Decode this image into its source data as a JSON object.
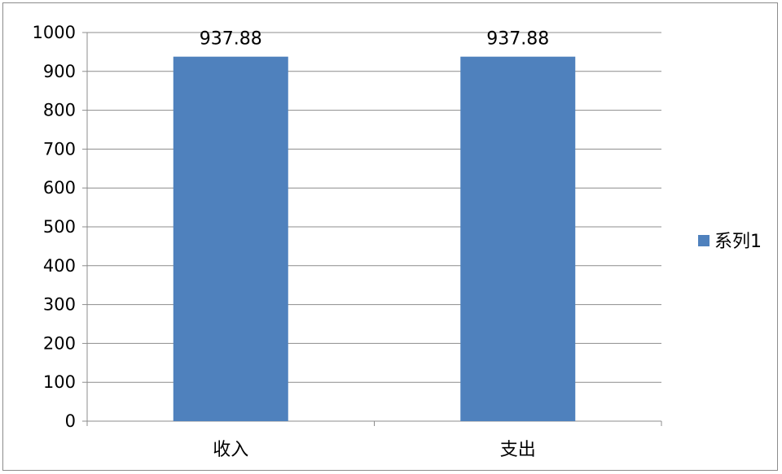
{
  "chart_data": {
    "type": "bar",
    "categories": [
      "收入",
      "支出"
    ],
    "series": [
      {
        "name": "系列1",
        "values": [
          937.88,
          937.88
        ],
        "color": "#4f81bd"
      }
    ],
    "data_labels": [
      "937.88",
      "937.88"
    ],
    "yticks": [
      "0",
      "100",
      "200",
      "300",
      "400",
      "500",
      "600",
      "700",
      "800",
      "900",
      "1000"
    ],
    "ylim": [
      0,
      1000
    ],
    "grid": true,
    "legend": {
      "position": "right",
      "entries": [
        "系列1"
      ]
    }
  }
}
